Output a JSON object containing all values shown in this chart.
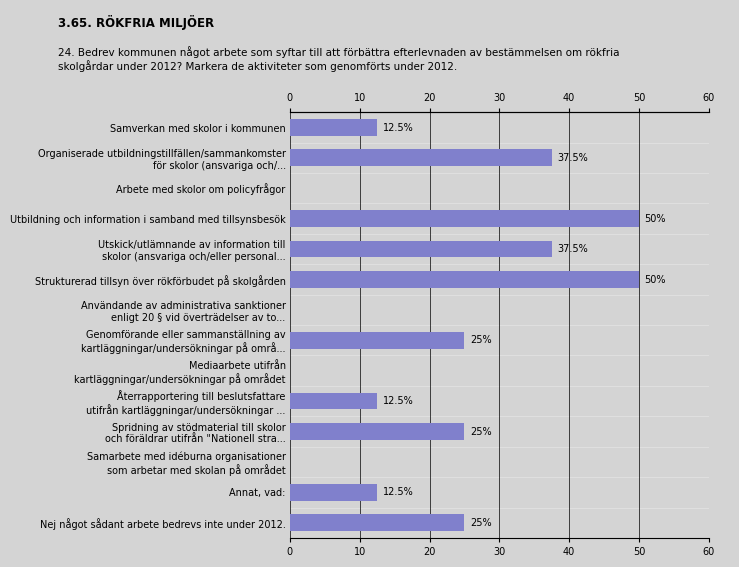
{
  "title": "3.65. RÖKFRIA MILJÖER",
  "subtitle": "24. Bedrev kommunen något arbete som syftar till att förbättra efterlevnaden av bestämmelsen om rökfria\nskolgårdar under 2012? Markera de aktiviteter som genomförts under 2012.",
  "categories": [
    "Samverkan med skolor i kommunen",
    "Organiserade utbildningstillfällen/sammankomster\nför skolor (ansvariga och/...",
    "Arbete med skolor om policyfrågor",
    "Utbildning och information i samband med tillsynsbesök",
    "Utskick/utlämnande av information till\nskolor (ansvariga och/eller personal...",
    "Strukturerad tillsyn över rökförbudet på skolgården",
    "Användande av administrativa sanktioner\nenligt 20 § vid överträdelser av to...",
    "Genomförande eller sammanställning av\nkartläggningar/undersökningar på områ...",
    "Mediaarbete utifrån\nkartläggningar/undersökningar på området",
    "Återrapportering till beslutsfattare\nutifrån kartläggningar/undersökningar ...",
    "Spridning av stödmaterial till skolor\noch föräldrar utifrån \"Nationell stra...",
    "Samarbete med idéburna organisationer\nsom arbetar med skolan på området",
    "Annat, vad:",
    "Nej något sådant arbete bedrevs inte under 2012."
  ],
  "values": [
    12.5,
    37.5,
    0,
    50,
    37.5,
    50,
    0,
    25,
    0,
    12.5,
    25,
    0,
    12.5,
    25
  ],
  "bar_color": "#8080cc",
  "bg_color": "#d4d4d4",
  "plot_bg_color": "#d4d4d4",
  "text_color": "#000000",
  "xlim": [
    0,
    60
  ],
  "xticks": [
    0,
    10,
    20,
    30,
    40,
    50,
    60
  ],
  "title_fontsize": 8.5,
  "subtitle_fontsize": 7.5,
  "label_fontsize": 7,
  "bar_label_fontsize": 7,
  "tick_fontsize": 7
}
